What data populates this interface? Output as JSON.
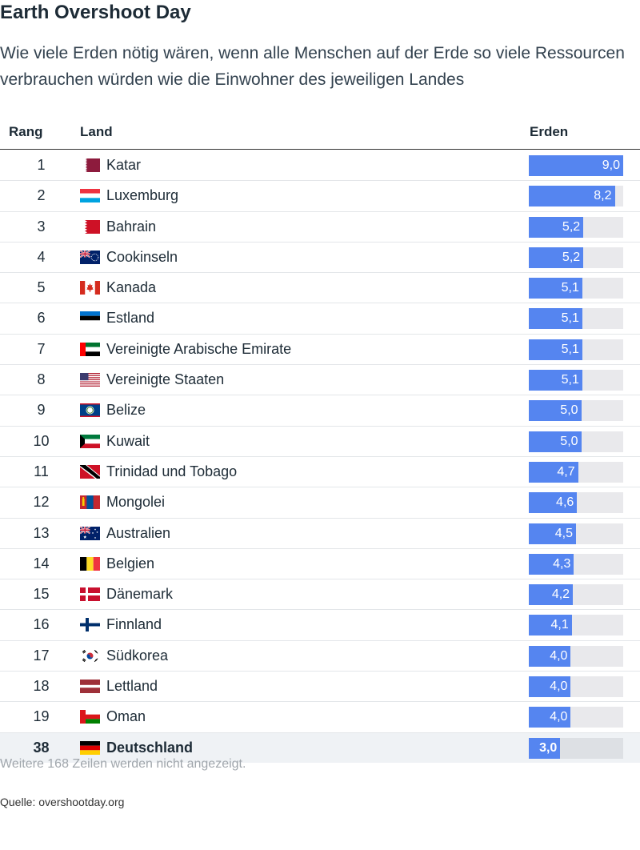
{
  "title": "Earth Overshoot Day",
  "subtitle": "Wie viele Erden nötig wären, wenn alle Menschen auf der Erde so viele Ressourcen verbrauchen würden wie die Einwohner des jeweiligen Landes",
  "columns": {
    "rank": "Rang",
    "country": "Land",
    "value": "Erden"
  },
  "note": "Weitere 168 Zeilen werden nicht angezeigt.",
  "source": "Quelle: overshootday.org",
  "colors": {
    "bar": "#5585f0",
    "track": "#e9e9ec",
    "highlight_row": "#eff2f5"
  },
  "chart_data": {
    "type": "table",
    "xlim": [
      0,
      9.0
    ],
    "rows": [
      {
        "rank": "1",
        "country": "Katar",
        "value": 9.0,
        "label": "9,0",
        "flag_icon": "flag-qatar-icon"
      },
      {
        "rank": "2",
        "country": "Luxemburg",
        "value": 8.2,
        "label": "8,2",
        "flag_icon": "flag-luxembourg-icon"
      },
      {
        "rank": "3",
        "country": "Bahrain",
        "value": 5.2,
        "label": "5,2",
        "flag_icon": "flag-bahrain-icon"
      },
      {
        "rank": "4",
        "country": "Cookinseln",
        "value": 5.2,
        "label": "5,2",
        "flag_icon": "flag-cook-islands-icon"
      },
      {
        "rank": "5",
        "country": "Kanada",
        "value": 5.1,
        "label": "5,1",
        "flag_icon": "flag-canada-icon"
      },
      {
        "rank": "6",
        "country": "Estland",
        "value": 5.1,
        "label": "5,1",
        "flag_icon": "flag-estonia-icon"
      },
      {
        "rank": "7",
        "country": "Vereinigte Arabische Emirate",
        "value": 5.1,
        "label": "5,1",
        "flag_icon": "flag-uae-icon"
      },
      {
        "rank": "8",
        "country": "Vereinigte Staaten",
        "value": 5.1,
        "label": "5,1",
        "flag_icon": "flag-usa-icon"
      },
      {
        "rank": "9",
        "country": "Belize",
        "value": 5.0,
        "label": "5,0",
        "flag_icon": "flag-belize-icon"
      },
      {
        "rank": "10",
        "country": "Kuwait",
        "value": 5.0,
        "label": "5,0",
        "flag_icon": "flag-kuwait-icon"
      },
      {
        "rank": "11",
        "country": "Trinidad und Tobago",
        "value": 4.7,
        "label": "4,7",
        "flag_icon": "flag-trinidad-tobago-icon"
      },
      {
        "rank": "12",
        "country": "Mongolei",
        "value": 4.6,
        "label": "4,6",
        "flag_icon": "flag-mongolia-icon"
      },
      {
        "rank": "13",
        "country": "Australien",
        "value": 4.5,
        "label": "4,5",
        "flag_icon": "flag-australia-icon"
      },
      {
        "rank": "14",
        "country": "Belgien",
        "value": 4.3,
        "label": "4,3",
        "flag_icon": "flag-belgium-icon"
      },
      {
        "rank": "15",
        "country": "Dänemark",
        "value": 4.2,
        "label": "4,2",
        "flag_icon": "flag-denmark-icon"
      },
      {
        "rank": "16",
        "country": "Finnland",
        "value": 4.1,
        "label": "4,1",
        "flag_icon": "flag-finland-icon"
      },
      {
        "rank": "17",
        "country": "Südkorea",
        "value": 4.0,
        "label": "4,0",
        "flag_icon": "flag-south-korea-icon"
      },
      {
        "rank": "18",
        "country": "Lettland",
        "value": 4.0,
        "label": "4,0",
        "flag_icon": "flag-latvia-icon"
      },
      {
        "rank": "19",
        "country": "Oman",
        "value": 4.0,
        "label": "4,0",
        "flag_icon": "flag-oman-icon"
      },
      {
        "rank": "38",
        "country": "Deutschland",
        "value": 3.0,
        "label": "3,0",
        "flag_icon": "flag-germany-icon",
        "highlight": true
      }
    ]
  }
}
